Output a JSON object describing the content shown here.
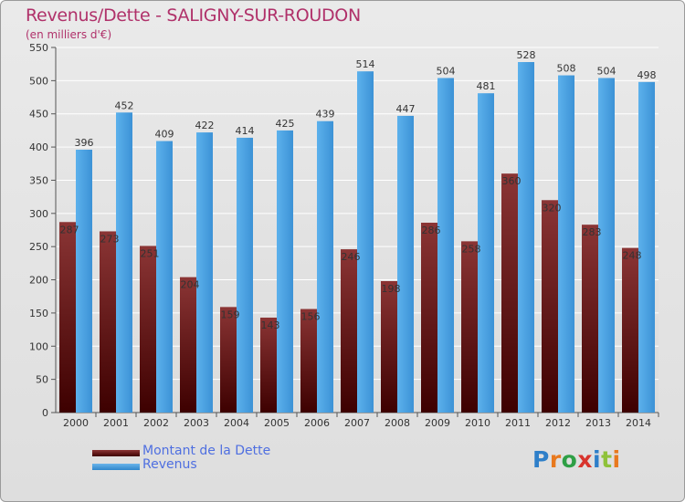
{
  "title": "Revenus/Dette - SALIGNY-SUR-ROUDON",
  "subtitle": "(en milliers d'€)",
  "logo_text": "Proxiti",
  "colors": {
    "debt_top": "#8b3535",
    "debt_bottom": "#3d0000",
    "revenue": "#4aa0e0",
    "title": "#b0316a",
    "legend_text": "#4f6fe0"
  },
  "legend": [
    {
      "label": "Montant de la Dette",
      "series": "debt"
    },
    {
      "label": "Revenus",
      "series": "revenue"
    }
  ],
  "chart_data": {
    "type": "bar",
    "title": "Revenus/Dette - SALIGNY-SUR-ROUDON",
    "ylabel": "(en milliers d'€)",
    "xlabel": "",
    "ylim": [
      0,
      550
    ],
    "yticks": [
      0,
      50,
      100,
      150,
      200,
      250,
      300,
      350,
      400,
      450,
      500,
      550
    ],
    "grid": true,
    "legend_position": "bottom-left",
    "categories": [
      "2000",
      "2001",
      "2002",
      "2003",
      "2004",
      "2005",
      "2006",
      "2007",
      "2008",
      "2009",
      "2010",
      "2011",
      "2012",
      "2013",
      "2014"
    ],
    "series": [
      {
        "name": "Montant de la Dette",
        "key": "debt",
        "values": [
          287,
          273,
          251,
          204,
          159,
          143,
          156,
          246,
          198,
          286,
          258,
          360,
          320,
          283,
          248
        ]
      },
      {
        "name": "Revenus",
        "key": "revenue",
        "values": [
          396,
          452,
          409,
          422,
          414,
          425,
          439,
          514,
          447,
          504,
          481,
          528,
          508,
          504,
          498
        ]
      }
    ]
  }
}
